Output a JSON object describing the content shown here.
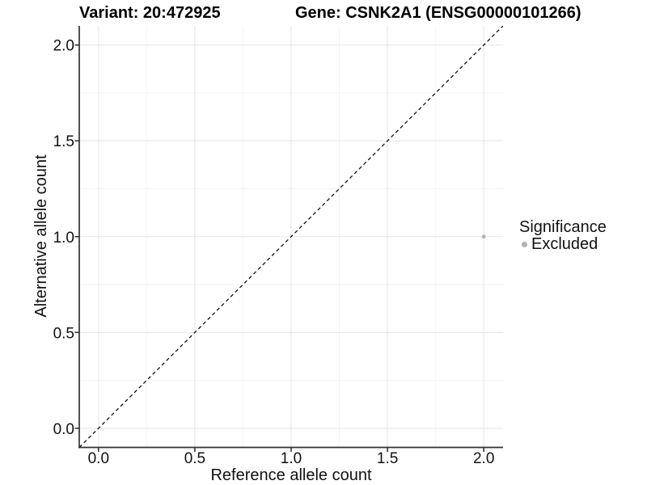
{
  "chart_data": {
    "type": "scatter",
    "title_left": "Variant: 20:472925",
    "title_right": "Gene: CSNK2A1 (ENSG00000101266)",
    "xlabel": "Reference allele count",
    "ylabel": "Alternative allele count",
    "xlim": [
      -0.1,
      2.1
    ],
    "ylim": [
      -0.1,
      2.1
    ],
    "x_major_ticks": [
      0,
      0.5,
      1,
      1.5,
      2
    ],
    "x_tick_labels": [
      "0.0",
      "0.5",
      "1.0",
      "1.5",
      "2.0"
    ],
    "y_major_ticks": [
      0,
      0.5,
      1,
      1.5,
      2
    ],
    "y_tick_labels": [
      "0.0",
      "0.5",
      "1.0",
      "1.5",
      "2.0"
    ],
    "x_minor_ticks": [
      0.25,
      0.75,
      1.25,
      1.75
    ],
    "y_minor_ticks": [
      0.25,
      0.75,
      1.25,
      1.75
    ],
    "grid": "major+minor",
    "reference_line": {
      "slope": 1,
      "intercept": 0,
      "style": "dashed",
      "color": "#000000"
    },
    "series": [
      {
        "name": "Excluded",
        "color": "#b3b3b3",
        "points": [
          {
            "x": 2.0,
            "y": 1.0
          }
        ]
      }
    ],
    "legend": {
      "title": "Significance",
      "position": "right",
      "entries": [
        {
          "label": "Excluded",
          "color": "#b3b3b3"
        }
      ]
    },
    "colors": {
      "grid_major": "#e7e7e7",
      "grid_minor": "#f3f3f3",
      "axis_line": "#333333",
      "point": "#b3b3b3"
    }
  }
}
